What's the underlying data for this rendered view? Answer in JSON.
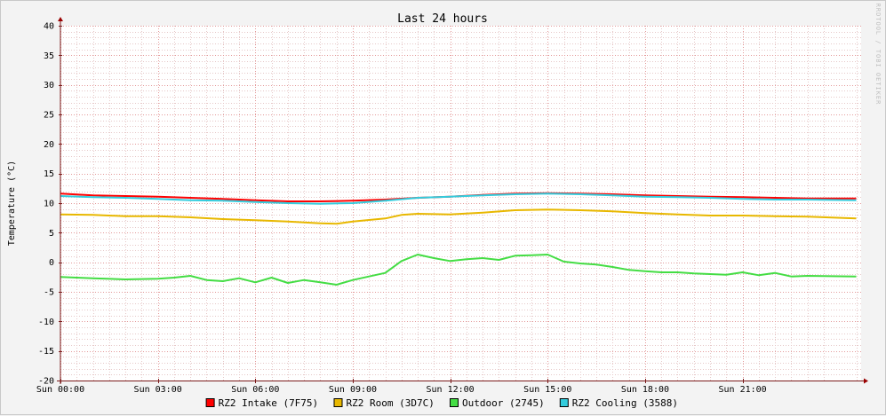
{
  "chart_data": {
    "type": "line",
    "title": "Last 24 hours",
    "ylabel": "Temperature (°C)",
    "watermark": "RRDTOOL / TOBI OETIKER",
    "ylim": [
      -20,
      40
    ],
    "yticks": [
      40,
      35,
      30,
      25,
      20,
      15,
      10,
      5,
      0,
      -5,
      -10,
      -15,
      -20
    ],
    "xlim": [
      0,
      24.65
    ],
    "xticks": [
      {
        "x": 0,
        "label": "Sun 00:00"
      },
      {
        "x": 3,
        "label": "Sun 03:00"
      },
      {
        "x": 6,
        "label": "Sun 06:00"
      },
      {
        "x": 9,
        "label": "Sun 09:00"
      },
      {
        "x": 12,
        "label": "Sun 12:00"
      },
      {
        "x": 15,
        "label": "Sun 15:00"
      },
      {
        "x": 18,
        "label": "Sun 18:00"
      },
      {
        "x": 21,
        "label": "Sun 21:00"
      }
    ],
    "grid": true,
    "legend_position": "bottom",
    "series": [
      {
        "name": "RZ2 Intake (7F75)",
        "color": "#ff0000",
        "x": [
          0,
          1,
          2,
          3,
          4,
          5,
          6,
          7,
          8,
          9,
          10,
          11,
          12,
          13,
          14,
          15,
          16,
          17,
          18,
          19,
          20,
          21,
          22,
          23,
          24.5
        ],
        "y": [
          11.6,
          11.3,
          11.2,
          11.1,
          10.9,
          10.7,
          10.5,
          10.3,
          10.3,
          10.4,
          10.6,
          10.9,
          11.1,
          11.4,
          11.6,
          11.7,
          11.6,
          11.5,
          11.3,
          11.2,
          11.1,
          11.0,
          10.9,
          10.8,
          10.8
        ]
      },
      {
        "name": "RZ2 Room (3D7C)",
        "color": "#e8b800",
        "x": [
          0,
          1,
          2,
          3,
          4,
          5,
          6,
          7,
          8,
          8.5,
          9,
          10,
          10.5,
          11,
          12,
          13,
          14,
          15,
          16,
          17,
          18,
          19,
          20,
          21,
          22,
          23,
          24.5
        ],
        "y": [
          8.1,
          8.0,
          7.8,
          7.8,
          7.6,
          7.3,
          7.1,
          6.9,
          6.6,
          6.5,
          6.9,
          7.4,
          8.0,
          8.2,
          8.1,
          8.4,
          8.8,
          8.9,
          8.8,
          8.6,
          8.3,
          8.1,
          7.9,
          7.9,
          7.8,
          7.7,
          7.4
        ]
      },
      {
        "name": "Outdoor (2745)",
        "color": "#44dd44",
        "x": [
          0,
          1,
          2,
          3,
          3.5,
          4,
          4.5,
          5,
          5.5,
          6,
          6.5,
          7,
          7.5,
          8,
          8.5,
          9,
          9.5,
          10,
          10.5,
          11,
          11.5,
          12,
          12.5,
          13,
          13.5,
          14,
          14.5,
          15,
          15.5,
          16,
          16.5,
          17,
          17.5,
          18,
          18.5,
          19,
          19.5,
          20,
          20.5,
          21,
          21.5,
          22,
          22.5,
          23,
          24.5
        ],
        "y": [
          -2.5,
          -2.7,
          -2.9,
          -2.8,
          -2.6,
          -2.3,
          -3.0,
          -3.2,
          -2.7,
          -3.4,
          -2.6,
          -3.5,
          -3.0,
          -3.4,
          -3.8,
          -3.0,
          -2.4,
          -1.8,
          0.2,
          1.3,
          0.7,
          0.2,
          0.5,
          0.7,
          0.4,
          1.1,
          1.2,
          1.3,
          0.1,
          -0.2,
          -0.4,
          -0.8,
          -1.3,
          -1.5,
          -1.7,
          -1.7,
          -1.9,
          -2.0,
          -2.1,
          -1.7,
          -2.2,
          -1.8,
          -2.4,
          -2.3,
          -2.4
        ]
      },
      {
        "name": "RZ2 Cooling (3588)",
        "color": "#33ccdd",
        "x": [
          0,
          1,
          2,
          3,
          4,
          5,
          6,
          7,
          8,
          9,
          10,
          11,
          12,
          13,
          14,
          15,
          16,
          17,
          18,
          19,
          20,
          21,
          22,
          23,
          24.5
        ],
        "y": [
          11.2,
          11.0,
          10.9,
          10.7,
          10.5,
          10.4,
          10.2,
          10.0,
          9.9,
          10.0,
          10.4,
          10.9,
          11.1,
          11.3,
          11.5,
          11.6,
          11.5,
          11.3,
          11.1,
          11.0,
          10.9,
          10.7,
          10.6,
          10.6,
          10.5
        ]
      }
    ]
  }
}
